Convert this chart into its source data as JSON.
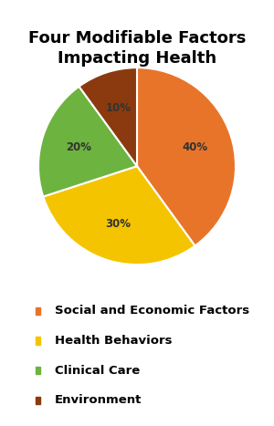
{
  "title": "Four Modifiable Factors\nImpacting Health",
  "slices": [
    40,
    30,
    20,
    10
  ],
  "labels": [
    "Social and Economic Factors",
    "Health Behaviors",
    "Clinical Care",
    "Environment"
  ],
  "colors": [
    "#E8742A",
    "#F5C400",
    "#6DB33F",
    "#8B3A0F"
  ],
  "pct_labels": [
    "40%",
    "30%",
    "20%",
    "10%"
  ],
  "startangle": 90,
  "background_color": "#ffffff",
  "title_fontsize": 13,
  "legend_fontsize": 9.5
}
